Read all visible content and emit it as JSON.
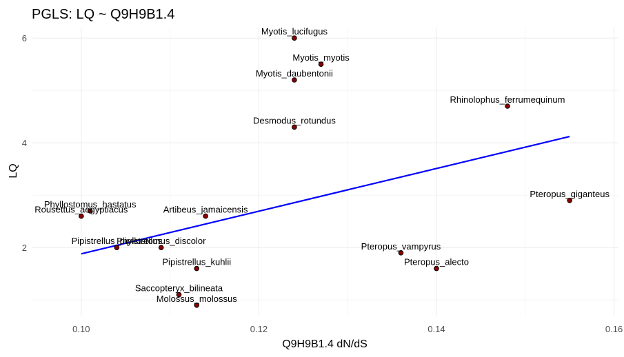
{
  "chart_data": {
    "type": "scatter",
    "title": "PGLS: LQ ~ Q9H9B1.4",
    "xlabel": "Q9H9B1.4 dN/dS",
    "ylabel": "LQ",
    "xlim": [
      0.0945,
      0.1605
    ],
    "ylim": [
      0.7,
      6.2
    ],
    "x_ticks": [
      0.1,
      0.12,
      0.14,
      0.16
    ],
    "x_tick_labels": [
      "0.10",
      "0.12",
      "0.14",
      "0.16"
    ],
    "y_ticks": [
      2,
      4,
      6
    ],
    "y_tick_labels": [
      "2",
      "4",
      "6"
    ],
    "grid": true,
    "legend": "none",
    "point_color": "#8b0000",
    "line_color": "#0000ff",
    "points": [
      {
        "label": "Myotis_lucifugus",
        "x": 0.124,
        "y": 6.0
      },
      {
        "label": "Myotis_myotis",
        "x": 0.127,
        "y": 5.5
      },
      {
        "label": "Myotis_daubentonii",
        "x": 0.124,
        "y": 5.2
      },
      {
        "label": "Rhinolophus_ferrumequinum",
        "x": 0.148,
        "y": 4.7
      },
      {
        "label": "Desmodus_rotundus",
        "x": 0.124,
        "y": 4.3
      },
      {
        "label": "Pteropus_giganteus",
        "x": 0.155,
        "y": 2.9
      },
      {
        "label": "Phyllostomus_hastatus",
        "x": 0.101,
        "y": 2.7
      },
      {
        "label": "Rousettus_aegyptiacus",
        "x": 0.1,
        "y": 2.6
      },
      {
        "label": "Artibeus_jamaicensis",
        "x": 0.114,
        "y": 2.6
      },
      {
        "label": "Pipistrellus_pipistrellus",
        "x": 0.104,
        "y": 2.0
      },
      {
        "label": "Phyllostomus_discolor",
        "x": 0.109,
        "y": 2.0
      },
      {
        "label": "Pteropus_vampyrus",
        "x": 0.136,
        "y": 1.9
      },
      {
        "label": "Pipistrellus_kuhlii",
        "x": 0.113,
        "y": 1.6
      },
      {
        "label": "Pteropus_alecto",
        "x": 0.14,
        "y": 1.6
      },
      {
        "label": "Saccopteryx_bilineata",
        "x": 0.111,
        "y": 1.1
      },
      {
        "label": "Molossus_molossus",
        "x": 0.113,
        "y": 0.9
      }
    ],
    "fit_line": {
      "x": [
        0.1,
        0.155
      ],
      "y": [
        1.88,
        4.12
      ]
    }
  }
}
